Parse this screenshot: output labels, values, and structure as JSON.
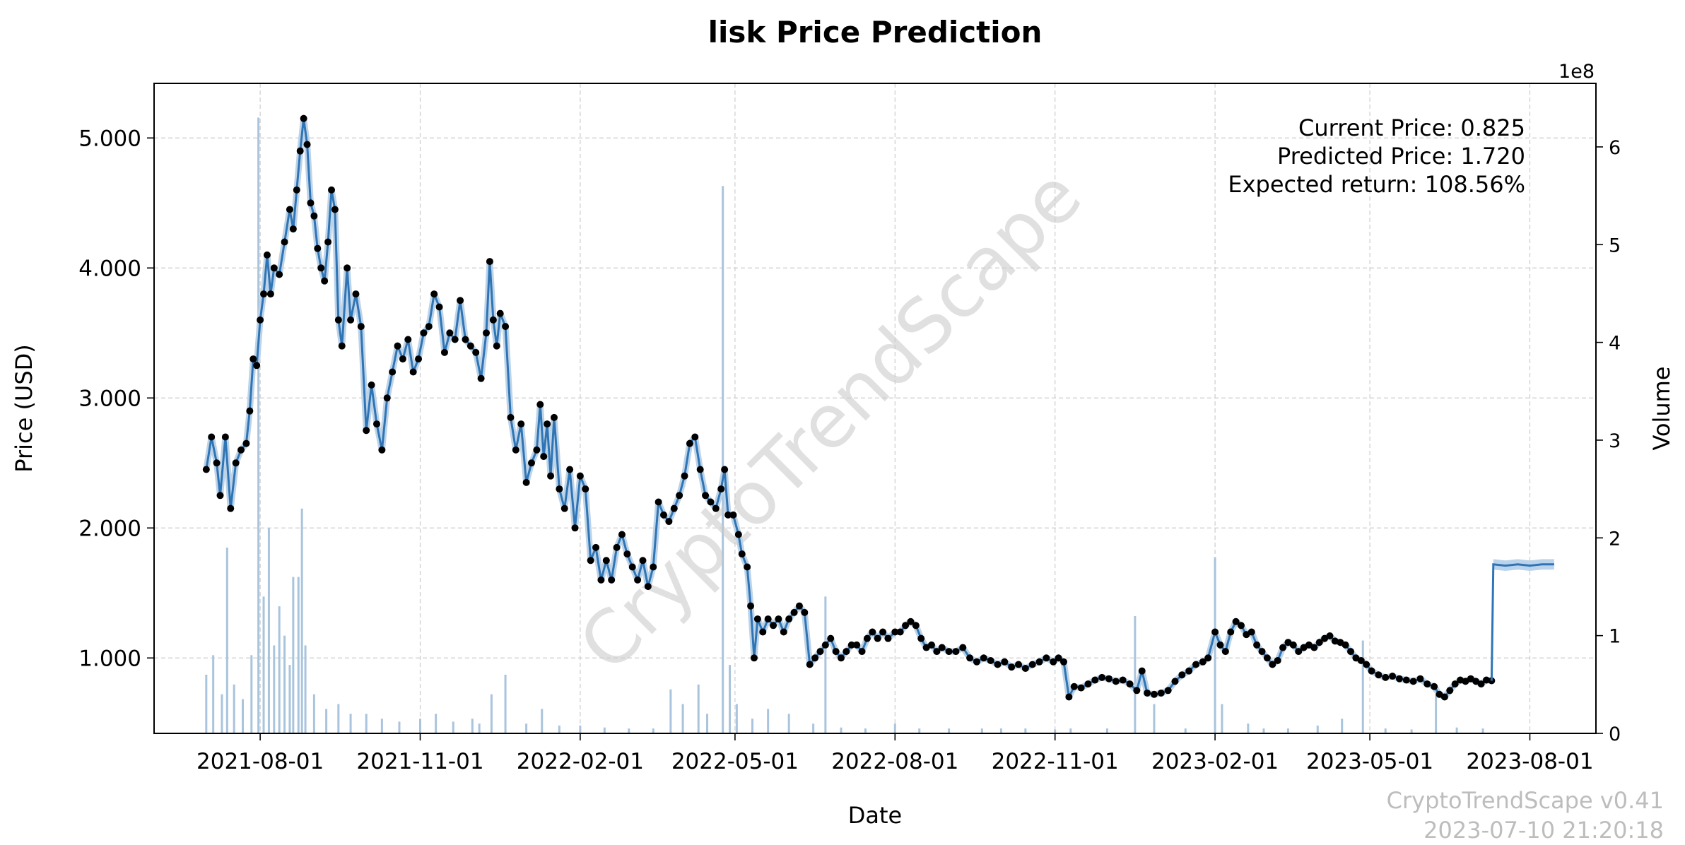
{
  "chart_data": {
    "type": "line",
    "title": "lisk Price Prediction",
    "xlabel": "Date",
    "ylabel": "Price (USD)",
    "ylabel_right": "Volume",
    "right_axis_multiplier": "1e8",
    "x_ticks": [
      "2021-08-01",
      "2021-11-01",
      "2022-02-01",
      "2022-05-01",
      "2022-08-01",
      "2022-11-01",
      "2023-02-01",
      "2023-05-01",
      "2023-08-01"
    ],
    "y_ticks": [
      "1.000",
      "2.000",
      "3.000",
      "4.000",
      "5.000"
    ],
    "y_ticks_right": [
      "0",
      "1",
      "2",
      "3",
      "4",
      "5",
      "6"
    ],
    "xlim": [
      "2021-06-01",
      "2023-09-08"
    ],
    "ylim": [
      0.42,
      5.42
    ],
    "ylim_right": [
      0,
      6.65
    ],
    "grid": true,
    "annotations": [
      "Current Price: 0.825",
      "Predicted Price: 1.720",
      "Expected return: 108.56%"
    ],
    "watermark": "CryptoTrendScape",
    "footer": [
      "CryptoTrendScape v0.41",
      "2023-07-10 21:20:18"
    ],
    "price_series": [
      [
        "2021-07-01",
        2.45
      ],
      [
        "2021-07-04",
        2.7
      ],
      [
        "2021-07-07",
        2.5
      ],
      [
        "2021-07-09",
        2.25
      ],
      [
        "2021-07-12",
        2.7
      ],
      [
        "2021-07-15",
        2.15
      ],
      [
        "2021-07-18",
        2.5
      ],
      [
        "2021-07-21",
        2.6
      ],
      [
        "2021-07-24",
        2.65
      ],
      [
        "2021-07-26",
        2.9
      ],
      [
        "2021-07-28",
        3.3
      ],
      [
        "2021-07-30",
        3.25
      ],
      [
        "2021-08-01",
        3.6
      ],
      [
        "2021-08-03",
        3.8
      ],
      [
        "2021-08-05",
        4.1
      ],
      [
        "2021-08-07",
        3.8
      ],
      [
        "2021-08-09",
        4.0
      ],
      [
        "2021-08-12",
        3.95
      ],
      [
        "2021-08-15",
        4.2
      ],
      [
        "2021-08-18",
        4.45
      ],
      [
        "2021-08-20",
        4.3
      ],
      [
        "2021-08-22",
        4.6
      ],
      [
        "2021-08-24",
        4.9
      ],
      [
        "2021-08-26",
        5.15
      ],
      [
        "2021-08-28",
        4.95
      ],
      [
        "2021-08-30",
        4.5
      ],
      [
        "2021-09-01",
        4.4
      ],
      [
        "2021-09-03",
        4.15
      ],
      [
        "2021-09-05",
        4.0
      ],
      [
        "2021-09-07",
        3.9
      ],
      [
        "2021-09-09",
        4.2
      ],
      [
        "2021-09-11",
        4.6
      ],
      [
        "2021-09-13",
        4.45
      ],
      [
        "2021-09-15",
        3.6
      ],
      [
        "2021-09-17",
        3.4
      ],
      [
        "2021-09-20",
        4.0
      ],
      [
        "2021-09-22",
        3.6
      ],
      [
        "2021-09-25",
        3.8
      ],
      [
        "2021-09-28",
        3.55
      ],
      [
        "2021-10-01",
        2.75
      ],
      [
        "2021-10-04",
        3.1
      ],
      [
        "2021-10-07",
        2.8
      ],
      [
        "2021-10-10",
        2.6
      ],
      [
        "2021-10-13",
        3.0
      ],
      [
        "2021-10-16",
        3.2
      ],
      [
        "2021-10-19",
        3.4
      ],
      [
        "2021-10-22",
        3.3
      ],
      [
        "2021-10-25",
        3.45
      ],
      [
        "2021-10-28",
        3.2
      ],
      [
        "2021-10-31",
        3.3
      ],
      [
        "2021-11-03",
        3.5
      ],
      [
        "2021-11-06",
        3.55
      ],
      [
        "2021-11-09",
        3.8
      ],
      [
        "2021-11-12",
        3.7
      ],
      [
        "2021-11-15",
        3.35
      ],
      [
        "2021-11-18",
        3.5
      ],
      [
        "2021-11-21",
        3.45
      ],
      [
        "2021-11-24",
        3.75
      ],
      [
        "2021-11-27",
        3.45
      ],
      [
        "2021-11-30",
        3.4
      ],
      [
        "2021-12-03",
        3.35
      ],
      [
        "2021-12-06",
        3.15
      ],
      [
        "2021-12-09",
        3.5
      ],
      [
        "2021-12-11",
        4.05
      ],
      [
        "2021-12-13",
        3.6
      ],
      [
        "2021-12-15",
        3.4
      ],
      [
        "2021-12-17",
        3.65
      ],
      [
        "2021-12-20",
        3.55
      ],
      [
        "2021-12-23",
        2.85
      ],
      [
        "2021-12-26",
        2.6
      ],
      [
        "2021-12-29",
        2.8
      ],
      [
        "2022-01-01",
        2.35
      ],
      [
        "2022-01-04",
        2.5
      ],
      [
        "2022-01-07",
        2.6
      ],
      [
        "2022-01-09",
        2.95
      ],
      [
        "2022-01-11",
        2.55
      ],
      [
        "2022-01-13",
        2.8
      ],
      [
        "2022-01-15",
        2.4
      ],
      [
        "2022-01-17",
        2.85
      ],
      [
        "2022-01-20",
        2.3
      ],
      [
        "2022-01-23",
        2.15
      ],
      [
        "2022-01-26",
        2.45
      ],
      [
        "2022-01-29",
        2.0
      ],
      [
        "2022-02-01",
        2.4
      ],
      [
        "2022-02-04",
        2.3
      ],
      [
        "2022-02-07",
        1.75
      ],
      [
        "2022-02-10",
        1.85
      ],
      [
        "2022-02-13",
        1.6
      ],
      [
        "2022-02-16",
        1.75
      ],
      [
        "2022-02-19",
        1.6
      ],
      [
        "2022-02-22",
        1.85
      ],
      [
        "2022-02-25",
        1.95
      ],
      [
        "2022-02-28",
        1.8
      ],
      [
        "2022-03-03",
        1.7
      ],
      [
        "2022-03-06",
        1.6
      ],
      [
        "2022-03-09",
        1.75
      ],
      [
        "2022-03-12",
        1.55
      ],
      [
        "2022-03-15",
        1.7
      ],
      [
        "2022-03-18",
        2.2
      ],
      [
        "2022-03-21",
        2.1
      ],
      [
        "2022-03-24",
        2.05
      ],
      [
        "2022-03-27",
        2.15
      ],
      [
        "2022-03-30",
        2.25
      ],
      [
        "2022-04-02",
        2.4
      ],
      [
        "2022-04-05",
        2.65
      ],
      [
        "2022-04-08",
        2.7
      ],
      [
        "2022-04-11",
        2.45
      ],
      [
        "2022-04-14",
        2.25
      ],
      [
        "2022-04-17",
        2.2
      ],
      [
        "2022-04-20",
        2.15
      ],
      [
        "2022-04-23",
        2.3
      ],
      [
        "2022-04-25",
        2.45
      ],
      [
        "2022-04-27",
        2.1
      ],
      [
        "2022-04-30",
        2.1
      ],
      [
        "2022-05-03",
        1.95
      ],
      [
        "2022-05-05",
        1.8
      ],
      [
        "2022-05-08",
        1.7
      ],
      [
        "2022-05-10",
        1.4
      ],
      [
        "2022-05-12",
        1.0
      ],
      [
        "2022-05-14",
        1.3
      ],
      [
        "2022-05-17",
        1.2
      ],
      [
        "2022-05-20",
        1.3
      ],
      [
        "2022-05-23",
        1.25
      ],
      [
        "2022-05-26",
        1.3
      ],
      [
        "2022-05-29",
        1.2
      ],
      [
        "2022-06-01",
        1.3
      ],
      [
        "2022-06-04",
        1.35
      ],
      [
        "2022-06-07",
        1.4
      ],
      [
        "2022-06-10",
        1.35
      ],
      [
        "2022-06-13",
        0.95
      ],
      [
        "2022-06-16",
        1.0
      ],
      [
        "2022-06-19",
        1.05
      ],
      [
        "2022-06-22",
        1.1
      ],
      [
        "2022-06-25",
        1.15
      ],
      [
        "2022-06-28",
        1.05
      ],
      [
        "2022-07-01",
        1.0
      ],
      [
        "2022-07-04",
        1.05
      ],
      [
        "2022-07-07",
        1.1
      ],
      [
        "2022-07-10",
        1.1
      ],
      [
        "2022-07-13",
        1.05
      ],
      [
        "2022-07-16",
        1.15
      ],
      [
        "2022-07-19",
        1.2
      ],
      [
        "2022-07-22",
        1.15
      ],
      [
        "2022-07-25",
        1.2
      ],
      [
        "2022-07-28",
        1.15
      ],
      [
        "2022-08-01",
        1.2
      ],
      [
        "2022-08-04",
        1.2
      ],
      [
        "2022-08-07",
        1.25
      ],
      [
        "2022-08-10",
        1.28
      ],
      [
        "2022-08-13",
        1.25
      ],
      [
        "2022-08-16",
        1.15
      ],
      [
        "2022-08-19",
        1.08
      ],
      [
        "2022-08-22",
        1.1
      ],
      [
        "2022-08-25",
        1.05
      ],
      [
        "2022-08-28",
        1.08
      ],
      [
        "2022-09-01",
        1.05
      ],
      [
        "2022-09-05",
        1.05
      ],
      [
        "2022-09-09",
        1.08
      ],
      [
        "2022-09-13",
        1.0
      ],
      [
        "2022-09-17",
        0.97
      ],
      [
        "2022-09-21",
        1.0
      ],
      [
        "2022-09-25",
        0.98
      ],
      [
        "2022-09-29",
        0.95
      ],
      [
        "2022-10-03",
        0.97
      ],
      [
        "2022-10-07",
        0.93
      ],
      [
        "2022-10-11",
        0.95
      ],
      [
        "2022-10-15",
        0.92
      ],
      [
        "2022-10-19",
        0.95
      ],
      [
        "2022-10-23",
        0.97
      ],
      [
        "2022-10-27",
        1.0
      ],
      [
        "2022-10-31",
        0.97
      ],
      [
        "2022-11-03",
        1.0
      ],
      [
        "2022-11-06",
        0.97
      ],
      [
        "2022-11-09",
        0.7
      ],
      [
        "2022-11-12",
        0.78
      ],
      [
        "2022-11-16",
        0.77
      ],
      [
        "2022-11-20",
        0.8
      ],
      [
        "2022-11-24",
        0.83
      ],
      [
        "2022-11-28",
        0.85
      ],
      [
        "2022-12-02",
        0.84
      ],
      [
        "2022-12-06",
        0.82
      ],
      [
        "2022-12-10",
        0.83
      ],
      [
        "2022-12-14",
        0.8
      ],
      [
        "2022-12-18",
        0.75
      ],
      [
        "2022-12-21",
        0.9
      ],
      [
        "2022-12-24",
        0.73
      ],
      [
        "2022-12-28",
        0.72
      ],
      [
        "2023-01-01",
        0.73
      ],
      [
        "2023-01-05",
        0.75
      ],
      [
        "2023-01-09",
        0.82
      ],
      [
        "2023-01-13",
        0.87
      ],
      [
        "2023-01-17",
        0.9
      ],
      [
        "2023-01-21",
        0.95
      ],
      [
        "2023-01-25",
        0.97
      ],
      [
        "2023-01-28",
        1.0
      ],
      [
        "2023-02-01",
        1.2
      ],
      [
        "2023-02-04",
        1.1
      ],
      [
        "2023-02-07",
        1.05
      ],
      [
        "2023-02-10",
        1.2
      ],
      [
        "2023-02-13",
        1.28
      ],
      [
        "2023-02-16",
        1.25
      ],
      [
        "2023-02-19",
        1.18
      ],
      [
        "2023-02-22",
        1.2
      ],
      [
        "2023-02-25",
        1.1
      ],
      [
        "2023-02-28",
        1.05
      ],
      [
        "2023-03-03",
        1.0
      ],
      [
        "2023-03-06",
        0.95
      ],
      [
        "2023-03-09",
        0.98
      ],
      [
        "2023-03-12",
        1.08
      ],
      [
        "2023-03-15",
        1.12
      ],
      [
        "2023-03-18",
        1.1
      ],
      [
        "2023-03-21",
        1.05
      ],
      [
        "2023-03-24",
        1.08
      ],
      [
        "2023-03-27",
        1.1
      ],
      [
        "2023-03-30",
        1.08
      ],
      [
        "2023-04-02",
        1.12
      ],
      [
        "2023-04-05",
        1.15
      ],
      [
        "2023-04-08",
        1.17
      ],
      [
        "2023-04-11",
        1.13
      ],
      [
        "2023-04-14",
        1.12
      ],
      [
        "2023-04-17",
        1.1
      ],
      [
        "2023-04-20",
        1.05
      ],
      [
        "2023-04-23",
        1.0
      ],
      [
        "2023-04-26",
        0.98
      ],
      [
        "2023-04-29",
        0.95
      ],
      [
        "2023-05-02",
        0.9
      ],
      [
        "2023-05-06",
        0.87
      ],
      [
        "2023-05-10",
        0.85
      ],
      [
        "2023-05-14",
        0.86
      ],
      [
        "2023-05-18",
        0.84
      ],
      [
        "2023-05-22",
        0.83
      ],
      [
        "2023-05-26",
        0.82
      ],
      [
        "2023-05-30",
        0.84
      ],
      [
        "2023-06-03",
        0.8
      ],
      [
        "2023-06-07",
        0.78
      ],
      [
        "2023-06-10",
        0.72
      ],
      [
        "2023-06-13",
        0.7
      ],
      [
        "2023-06-16",
        0.75
      ],
      [
        "2023-06-19",
        0.8
      ],
      [
        "2023-06-22",
        0.83
      ],
      [
        "2023-06-25",
        0.82
      ],
      [
        "2023-06-28",
        0.84
      ],
      [
        "2023-07-01",
        0.82
      ],
      [
        "2023-07-04",
        0.8
      ],
      [
        "2023-07-07",
        0.83
      ],
      [
        "2023-07-10",
        0.825
      ]
    ],
    "prediction_series": [
      [
        "2023-07-10",
        0.825
      ],
      [
        "2023-07-11",
        1.72
      ],
      [
        "2023-07-18",
        1.71
      ],
      [
        "2023-07-25",
        1.72
      ],
      [
        "2023-08-01",
        1.71
      ],
      [
        "2023-08-08",
        1.72
      ],
      [
        "2023-08-15",
        1.72
      ]
    ],
    "prediction_band": 0.04,
    "volume_series": [
      [
        "2021-07-01",
        0.6
      ],
      [
        "2021-07-05",
        0.8
      ],
      [
        "2021-07-10",
        0.4
      ],
      [
        "2021-07-13",
        1.9
      ],
      [
        "2021-07-17",
        0.5
      ],
      [
        "2021-07-22",
        0.35
      ],
      [
        "2021-07-27",
        0.8
      ],
      [
        "2021-07-31",
        6.3
      ],
      [
        "2021-08-03",
        1.4
      ],
      [
        "2021-08-06",
        2.1
      ],
      [
        "2021-08-09",
        0.9
      ],
      [
        "2021-08-12",
        1.3
      ],
      [
        "2021-08-15",
        1.0
      ],
      [
        "2021-08-18",
        0.7
      ],
      [
        "2021-08-20",
        1.6
      ],
      [
        "2021-08-23",
        1.6
      ],
      [
        "2021-08-25",
        2.3
      ],
      [
        "2021-08-27",
        0.9
      ],
      [
        "2021-09-01",
        0.4
      ],
      [
        "2021-09-08",
        0.25
      ],
      [
        "2021-09-15",
        0.3
      ],
      [
        "2021-09-22",
        0.2
      ],
      [
        "2021-10-01",
        0.2
      ],
      [
        "2021-10-10",
        0.15
      ],
      [
        "2021-10-20",
        0.12
      ],
      [
        "2021-11-01",
        0.15
      ],
      [
        "2021-11-10",
        0.2
      ],
      [
        "2021-11-20",
        0.12
      ],
      [
        "2021-12-01",
        0.15
      ],
      [
        "2021-12-05",
        0.1
      ],
      [
        "2021-12-12",
        0.4
      ],
      [
        "2021-12-20",
        0.6
      ],
      [
        "2022-01-01",
        0.1
      ],
      [
        "2022-01-10",
        0.25
      ],
      [
        "2022-01-20",
        0.08
      ],
      [
        "2022-02-01",
        0.08
      ],
      [
        "2022-02-15",
        0.06
      ],
      [
        "2022-03-01",
        0.05
      ],
      [
        "2022-03-15",
        0.05
      ],
      [
        "2022-03-25",
        0.45
      ],
      [
        "2022-04-01",
        0.3
      ],
      [
        "2022-04-10",
        0.5
      ],
      [
        "2022-04-15",
        0.2
      ],
      [
        "2022-04-24",
        5.6
      ],
      [
        "2022-04-28",
        0.7
      ],
      [
        "2022-05-02",
        0.3
      ],
      [
        "2022-05-11",
        0.15
      ],
      [
        "2022-05-20",
        0.25
      ],
      [
        "2022-06-01",
        0.2
      ],
      [
        "2022-06-15",
        0.1
      ],
      [
        "2022-06-22",
        1.4
      ],
      [
        "2022-07-01",
        0.06
      ],
      [
        "2022-07-15",
        0.05
      ],
      [
        "2022-08-01",
        0.1
      ],
      [
        "2022-08-15",
        0.05
      ],
      [
        "2022-09-01",
        0.05
      ],
      [
        "2022-09-20",
        0.05
      ],
      [
        "2022-10-01",
        0.05
      ],
      [
        "2022-10-15",
        0.05
      ],
      [
        "2022-11-01",
        0.04
      ],
      [
        "2022-11-10",
        0.05
      ],
      [
        "2022-12-01",
        0.05
      ],
      [
        "2022-12-17",
        1.2
      ],
      [
        "2022-12-28",
        0.3
      ],
      [
        "2023-01-15",
        0.05
      ],
      [
        "2023-02-01",
        1.8
      ],
      [
        "2023-02-05",
        0.3
      ],
      [
        "2023-02-20",
        0.1
      ],
      [
        "2023-03-01",
        0.05
      ],
      [
        "2023-03-15",
        0.05
      ],
      [
        "2023-04-01",
        0.08
      ],
      [
        "2023-04-15",
        0.15
      ],
      [
        "2023-04-27",
        0.95
      ],
      [
        "2023-05-10",
        0.05
      ],
      [
        "2023-05-25",
        0.04
      ],
      [
        "2023-06-08",
        0.4
      ],
      [
        "2023-06-20",
        0.06
      ],
      [
        "2023-07-05",
        0.05
      ]
    ]
  }
}
